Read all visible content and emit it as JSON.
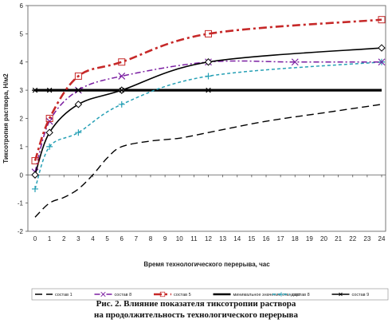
{
  "chart_data": {
    "type": "line",
    "xlabel": "Время технологического перерыва, час",
    "ylabel": "Тиксотропия раствора, Н/м2",
    "x_ticks": [
      0,
      1,
      2,
      3,
      4,
      5,
      6,
      7,
      8,
      9,
      10,
      11,
      12,
      13,
      14,
      15,
      16,
      17,
      18,
      19,
      20,
      21,
      22,
      23,
      24
    ],
    "y_ticks": [
      -2,
      -1,
      0,
      1,
      2,
      3,
      4,
      5,
      6
    ],
    "xlim": [
      0,
      24
    ],
    "ylim": [
      -2,
      6
    ],
    "grid": false,
    "legend_position": "bottom",
    "series": [
      {
        "name": "состав 1",
        "color": "#000000",
        "style": "long-dash",
        "marker": "none",
        "x": [
          0,
          1,
          2,
          3,
          4,
          5,
          6,
          8,
          10,
          12,
          16,
          20,
          24
        ],
        "y": [
          -1.5,
          -1.0,
          -0.8,
          -0.5,
          0.0,
          0.6,
          1.0,
          1.2,
          1.3,
          1.5,
          1.9,
          2.2,
          2.5
        ]
      },
      {
        "name": "состав 8",
        "color": "#7b1fa2",
        "style": "dash-dot",
        "marker": "x",
        "x": [
          0,
          1,
          3,
          6,
          12,
          18,
          24
        ],
        "y": [
          0.1,
          1.9,
          3.0,
          3.5,
          4.0,
          4.0,
          4.0
        ]
      },
      {
        "name": "состав 5",
        "color": "#c62828",
        "style": "dash-dot-heavy",
        "marker": "square",
        "x": [
          0,
          1,
          3,
          6,
          12,
          24
        ],
        "y": [
          0.5,
          2.0,
          3.5,
          4.0,
          5.0,
          5.5
        ]
      },
      {
        "name": "минимальное значение стандарт",
        "color": "#000000",
        "style": "solid-thick",
        "marker": "none",
        "x": [
          0,
          24
        ],
        "y": [
          3,
          3
        ]
      },
      {
        "name": "состав 8",
        "color": "#26a0b5",
        "style": "dashed",
        "marker": "cross",
        "x": [
          0,
          1,
          3,
          6,
          12,
          24
        ],
        "y": [
          -0.5,
          1.0,
          1.5,
          2.5,
          3.5,
          4.0
        ]
      },
      {
        "name": "состав 9",
        "color": "#000000",
        "style": "solid",
        "marker": "diamond",
        "x": [
          0,
          1,
          3,
          6,
          12,
          24
        ],
        "y": [
          0.0,
          1.5,
          2.5,
          3.0,
          4.0,
          4.5
        ]
      }
    ],
    "star_marks": {
      "x": [
        0,
        1,
        3,
        6,
        12
      ],
      "y": [
        3,
        3,
        3,
        3,
        3
      ]
    }
  },
  "caption": {
    "line1": "Рис. 2. Влияние показателя тиксотропии раствора",
    "line2": "на продолжительность технологического перерыва"
  }
}
